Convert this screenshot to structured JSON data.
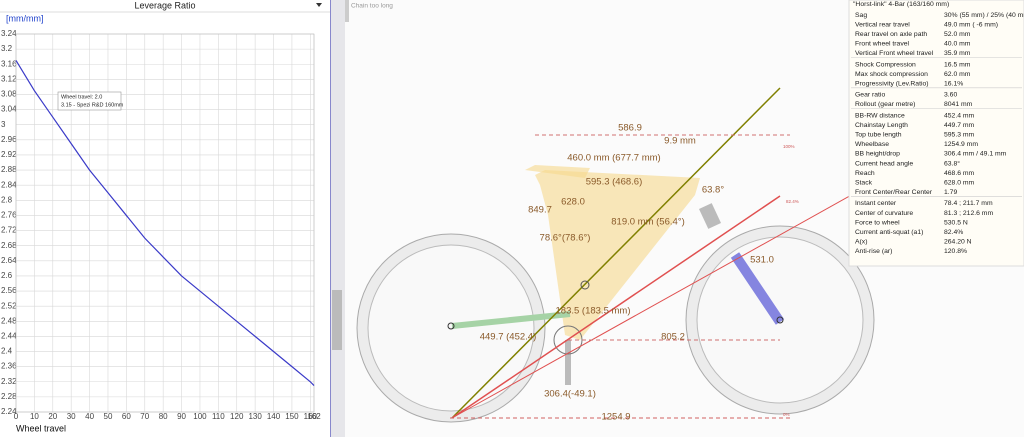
{
  "chart_data": {
    "type": "line",
    "title": "Leverage Ratio",
    "y_label": "[mm/mm]",
    "x_label": "Wheel travel",
    "x": [
      0,
      10,
      20,
      30,
      40,
      50,
      60,
      70,
      80,
      90,
      100,
      110,
      120,
      130,
      140,
      150,
      160,
      162
    ],
    "values": [
      3.17,
      3.09,
      3.02,
      2.95,
      2.88,
      2.82,
      2.76,
      2.7,
      2.65,
      2.6,
      2.56,
      2.52,
      2.48,
      2.44,
      2.4,
      2.36,
      2.32,
      2.31
    ],
    "color": "#3a3ac8",
    "xlim": [
      0,
      162
    ],
    "ylim": [
      2.24,
      3.24
    ],
    "xticks": [
      0,
      10,
      20,
      30,
      40,
      50,
      60,
      70,
      80,
      90,
      100,
      110,
      120,
      130,
      140,
      150,
      160,
      162
    ],
    "yticks": [
      2.24,
      2.28,
      2.32,
      2.36,
      2.4,
      2.44,
      2.48,
      2.52,
      2.56,
      2.6,
      2.64,
      2.68,
      2.72,
      2.76,
      2.8,
      2.84,
      2.88,
      2.92,
      2.96,
      3,
      3.04,
      3.08,
      3.12,
      3.16,
      3.2,
      3.24
    ],
    "grid": true,
    "annotations": [
      "Wheel travel: 2.0",
      "3.15 - Spezi R&D 160mm"
    ]
  },
  "status": "Chain too long",
  "diagram": {
    "labels": [
      "586.9",
      "9.9 mm",
      "460.0 mm (677.7 mm)",
      "595.3 (468.6)",
      "63.8°",
      "849.7",
      "628.0",
      "819.0 mm (56.4°)",
      "78.6°(78.6°)",
      "531.0",
      "183.5 (183.5 mm)",
      "449.7 (452.4)",
      "805.2",
      "306.4(-49.1)",
      "1254.9",
      "100%",
      "82.4%",
      "0%"
    ]
  },
  "table": {
    "title": "\"Horst-link\" 4-Bar (163/160 mm)",
    "groups": [
      [
        [
          "Sag",
          "30% (55 mm) / 25% (40 mm"
        ],
        [
          "Vertical rear travel",
          "49.0 mm ( -6 mm)"
        ],
        [
          "Rear travel on axle path",
          "52.0 mm"
        ],
        [
          "Front wheel travel",
          "40.0 mm"
        ],
        [
          "Vertical Front wheel travel",
          "35.9 mm"
        ]
      ],
      [
        [
          "Shock Compression",
          "16.5 mm"
        ],
        [
          "Max shock compression",
          "62.0 mm"
        ],
        [
          "Progressivity (Lev.Ratio)",
          "16.1%"
        ]
      ],
      [
        [
          "Gear ratio",
          "3.60"
        ],
        [
          "Rollout (gear metre)",
          "8041 mm"
        ]
      ],
      [
        [
          "BB-RW distance",
          "452.4 mm"
        ],
        [
          "Chainstay Length",
          "449.7 mm"
        ],
        [
          "Top tube length",
          "595.3 mm"
        ],
        [
          "Wheelbase",
          "1254.9 mm"
        ],
        [
          "BB height/drop",
          "306.4 mm / 49.1 mm"
        ],
        [
          "Current head angle",
          "63.8°"
        ],
        [
          "Reach",
          "468.6 mm"
        ],
        [
          "Stack",
          "628.0 mm"
        ],
        [
          "Front Center/Rear Center",
          "1.79"
        ]
      ],
      [
        [
          "Instant center",
          "78.4 ; 211.7 mm"
        ],
        [
          "Center of curvature",
          "81.3 ; 212.6 mm"
        ],
        [
          "Force to wheel",
          "530.5 N"
        ],
        [
          "Current anti-squat (a1)",
          "82.4%"
        ],
        [
          "A(x)",
          "264.20 N"
        ],
        [
          "Anti-rise (ar)",
          "120.8%"
        ]
      ]
    ]
  }
}
